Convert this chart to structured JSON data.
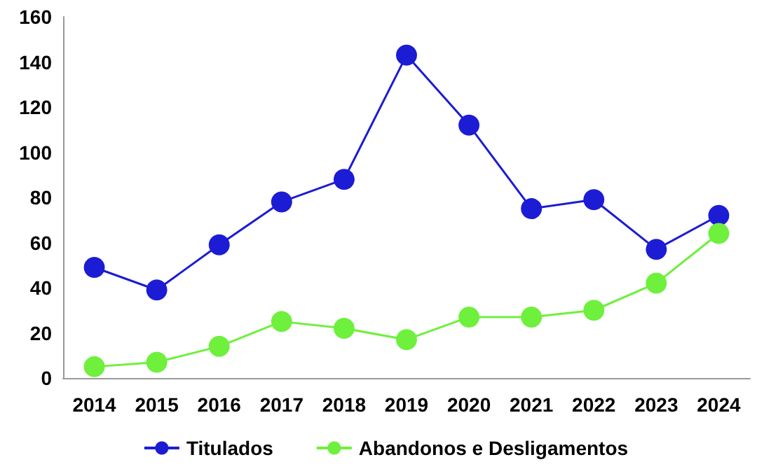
{
  "chart_data": {
    "type": "line",
    "categories": [
      "2014",
      "2015",
      "2016",
      "2017",
      "2018",
      "2019",
      "2020",
      "2021",
      "2022",
      "2023",
      "2024"
    ],
    "series": [
      {
        "name": "Titulados",
        "color": "#1c1cd4",
        "values": [
          49,
          39,
          59,
          78,
          88,
          143,
          112,
          75,
          79,
          57,
          72
        ]
      },
      {
        "name": "Abandonos e Desligamentos",
        "color": "#6ef03c",
        "values": [
          5,
          7,
          14,
          25,
          22,
          17,
          27,
          27,
          30,
          42,
          64
        ]
      }
    ],
    "ylim": [
      0,
      160
    ],
    "yticks": [
      0,
      20,
      40,
      60,
      80,
      100,
      120,
      140,
      160
    ],
    "grid": false,
    "legend": "bottom",
    "marker": "circle",
    "line_style": "solid"
  }
}
